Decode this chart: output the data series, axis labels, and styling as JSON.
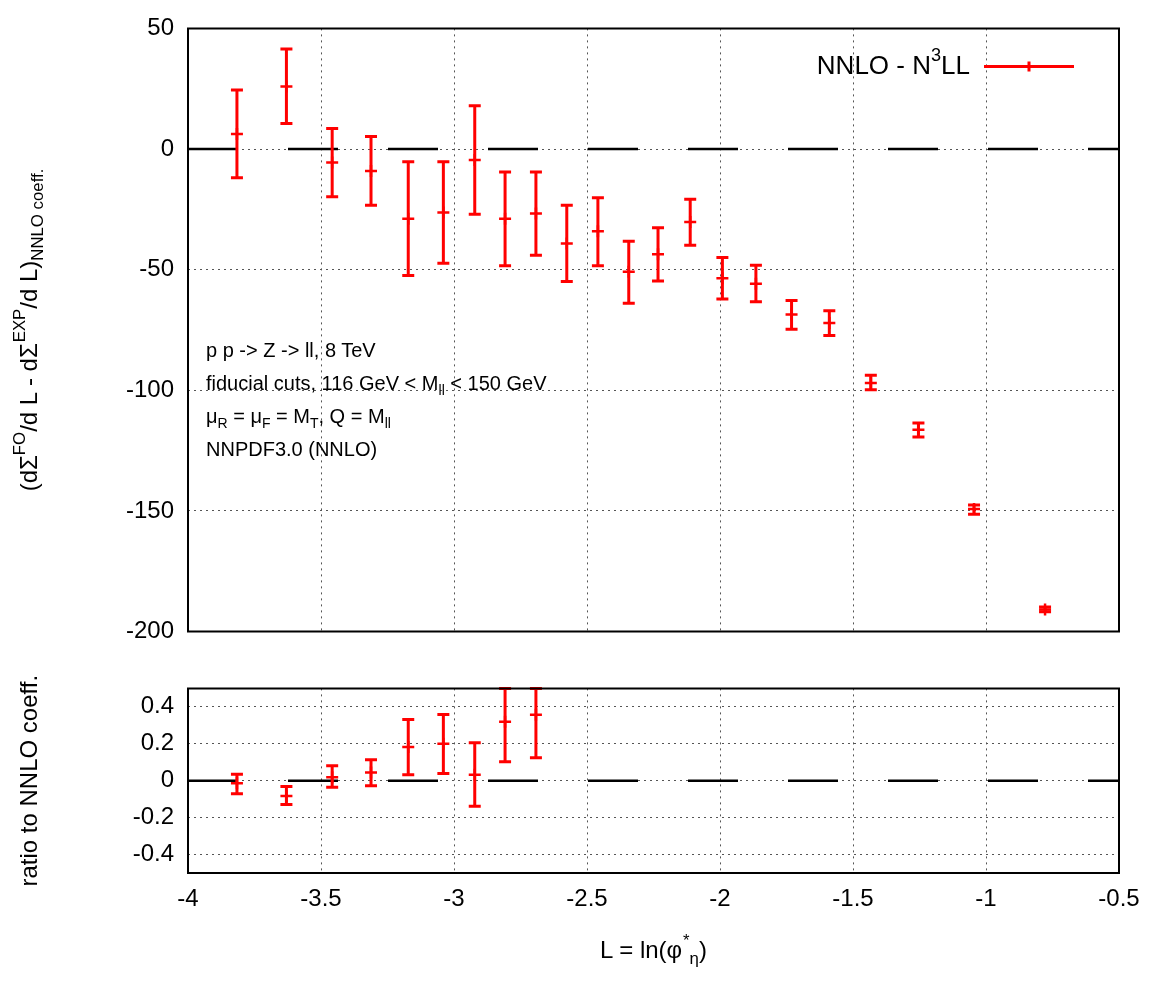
{
  "chart_data": [
    {
      "type": "scatter",
      "ylabel": "(dΣ$^{FO}$/d L - dΣ$^{EXP}$/d L)$_{NNLO coeff.}$",
      "annotations": [
        "p p -> Z -> ll, 8 TeV",
        "fiducial cuts, 116 GeV < M$_{ll}$ < 150 GeV",
        "μ$_{R}$ = μ$_{F}$ = M$_{T}$, Q = M$_{ll}$",
        "NNPDF3.0 (NNLO)"
      ],
      "x": [
        -3.816,
        -3.63,
        -3.458,
        -3.312,
        -3.172,
        -3.04,
        -2.922,
        -2.808,
        -2.692,
        -2.576,
        -2.459,
        -2.343,
        -2.233,
        -2.112,
        -1.991,
        -1.865,
        -1.731,
        -1.589,
        -1.433,
        -1.254,
        -1.045,
        -0.778
      ],
      "series": [
        {
          "name": "NNLO - N$^{3}$LL",
          "color": "#ff0000",
          "values": [
            6.2,
            25.9,
            -5.6,
            -9.1,
            -28.9,
            -26.3,
            -4.5,
            -28.9,
            -26.7,
            -39.2,
            -34.1,
            -50.9,
            -43.6,
            -30.2,
            -53.5,
            -55.8,
            -68.6,
            -72.1,
            -97,
            -116.3,
            -149.2,
            -190.8
          ],
          "errors": [
            [
              -11.9,
              24.5
            ],
            [
              10.6,
              41.5
            ],
            [
              -19.8,
              8.5
            ],
            [
              -23.3,
              5.2
            ],
            [
              -52.4,
              -5.3
            ],
            [
              -47.3,
              -5.3
            ],
            [
              -27,
              17.9
            ],
            [
              -48.4,
              -9.5
            ],
            [
              -44,
              -9.5
            ],
            [
              -54.9,
              -23.3
            ],
            [
              -48.4,
              -20.2
            ],
            [
              -63.9,
              -38.2
            ],
            [
              -54.7,
              -32.6
            ],
            [
              -39.9,
              -20.8
            ],
            [
              -62.2,
              -45
            ],
            [
              -63.3,
              -48.2
            ],
            [
              -74.7,
              -62.8
            ],
            [
              -77.3,
              -67
            ],
            [
              -99.8,
              -93.8
            ],
            [
              -119.3,
              -113.5
            ],
            [
              -151.4,
              -147.5
            ],
            [
              -191.8,
              -189.8
            ]
          ]
        }
      ],
      "xlim": [
        -4,
        -0.5
      ],
      "xticks": [
        -4,
        -3.5,
        -3,
        -2.5,
        -2,
        -1.5,
        -1,
        -0.5
      ],
      "ylim": [
        -200,
        50
      ],
      "yticks": [
        -200,
        -150,
        -100,
        -50,
        0,
        50
      ],
      "tick_labels": "y",
      "grid": true,
      "legend": "top right",
      "marker": "cross",
      "ref_lines": [
        {
          "axis": "y",
          "value": 0,
          "color": "#000000",
          "line_style": "dashed"
        }
      ]
    },
    {
      "type": "scatter",
      "ylabel": "ratio to NNLO coeff.",
      "xlabel": "L = ln(φ$^{*}$$_{η}$)",
      "x": [
        -3.816,
        -3.63,
        -3.458,
        -3.312,
        -3.172,
        -3.04,
        -2.922,
        -2.808,
        -2.692
      ],
      "series": [
        {
          "color": "#ff0000",
          "values": [
            -0.014,
            -0.083,
            0.019,
            0.044,
            0.182,
            0.2,
            0.032,
            0.32,
            0.357
          ],
          "errors": [
            [
              -0.071,
              0.035
            ],
            [
              -0.129,
              -0.032
            ],
            [
              -0.036,
              0.081
            ],
            [
              -0.027,
              0.113
            ],
            [
              0.032,
              0.332
            ],
            [
              0.039,
              0.359
            ],
            [
              -0.138,
              0.205
            ],
            [
              0.102,
              0.5
            ],
            [
              0.125,
              0.5
            ]
          ]
        }
      ],
      "xlim": [
        -4,
        -0.5
      ],
      "xticks": [
        -4,
        -3.5,
        -3,
        -2.5,
        -2,
        -1.5,
        -1,
        -0.5
      ],
      "ylim": [
        -0.5,
        0.5
      ],
      "yticks": [
        -0.4,
        -0.2,
        0,
        0.2,
        0.4
      ],
      "grid": true,
      "marker": "cross",
      "ref_lines": [
        {
          "axis": "y",
          "value": 0,
          "color": "#000000",
          "line_style": "dashed"
        }
      ]
    }
  ]
}
